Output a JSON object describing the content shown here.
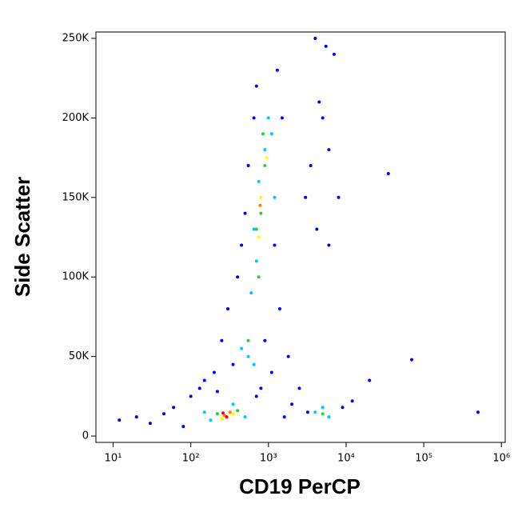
{
  "chart_data": {
    "type": "scatter",
    "x_label": "CD19 PerCP",
    "y_label": "Side Scatter",
    "xscale": "log",
    "xlim": [
      6,
      1120000
    ],
    "ylim": [
      -4000,
      254000
    ],
    "xticks": [
      {
        "value": 10,
        "label": "10¹"
      },
      {
        "value": 100,
        "label": "10²"
      },
      {
        "value": 1000,
        "label": "10³"
      },
      {
        "value": 10000,
        "label": "10⁴"
      },
      {
        "value": 100000,
        "label": "10⁵"
      },
      {
        "value": 1000000,
        "label": "10⁶"
      }
    ],
    "yticks": [
      0,
      {
        "value": 50000,
        "label": "50K"
      },
      {
        "value": 100000,
        "label": "100K"
      },
      {
        "value": 150000,
        "label": "150K"
      },
      {
        "value": 200000,
        "label": "200K"
      },
      {
        "value": 250000,
        "label": "250K"
      }
    ],
    "series": [
      {
        "color": "#0000ff",
        "x": [
          12,
          20,
          30,
          45,
          60,
          80,
          100,
          130,
          200,
          250,
          300,
          350,
          400,
          450,
          500,
          550,
          650,
          700,
          1300,
          1500,
          1200,
          1400,
          900,
          1800,
          2500,
          3000,
          4000,
          5000,
          6000,
          7000,
          3500,
          8000,
          6000,
          3200,
          9000,
          12000,
          20000,
          35000,
          70000,
          500000,
          800,
          1100,
          150,
          220,
          700,
          1600,
          2000,
          4500,
          5500,
          4200
        ],
        "values": [
          10000,
          12000,
          8000,
          14000,
          18000,
          6000,
          25000,
          30000,
          40000,
          60000,
          80000,
          45000,
          100000,
          120000,
          140000,
          170000,
          200000,
          220000,
          230000,
          200000,
          120000,
          80000,
          60000,
          50000,
          30000,
          150000,
          250000,
          200000,
          180000,
          240000,
          170000,
          150000,
          120000,
          15000,
          18000,
          22000,
          35000,
          165000,
          48000,
          15000,
          30000,
          40000,
          35000,
          28000,
          25000,
          12000,
          20000,
          210000,
          245000,
          130000
        ]
      },
      {
        "color": "#00c8ff",
        "x": [
          150,
          180,
          350,
          500,
          450,
          550,
          650,
          600,
          700,
          750,
          900,
          1000,
          1100,
          650,
          1200,
          4000,
          6000,
          5000
        ],
        "values": [
          15000,
          10000,
          20000,
          12000,
          55000,
          50000,
          45000,
          90000,
          110000,
          160000,
          180000,
          200000,
          190000,
          130000,
          150000,
          15000,
          12000,
          18000
        ]
      },
      {
        "color": "#32cd32",
        "x": [
          220,
          400,
          550,
          700,
          800,
          900,
          850,
          750,
          5000
        ],
        "values": [
          14000,
          16000,
          60000,
          130000,
          140000,
          170000,
          190000,
          100000,
          14000
        ]
      },
      {
        "color": "#ffff00",
        "x": [
          250,
          350,
          800,
          750,
          950
        ],
        "values": [
          11000,
          14000,
          150000,
          125000,
          175000
        ]
      },
      {
        "color": "#ff8000",
        "x": [
          270,
          320,
          780
        ],
        "values": [
          13000,
          15000,
          145000
        ]
      },
      {
        "color": "#ff0000",
        "x": [
          290,
          260
        ],
        "values": [
          12000,
          14500
        ]
      }
    ]
  }
}
